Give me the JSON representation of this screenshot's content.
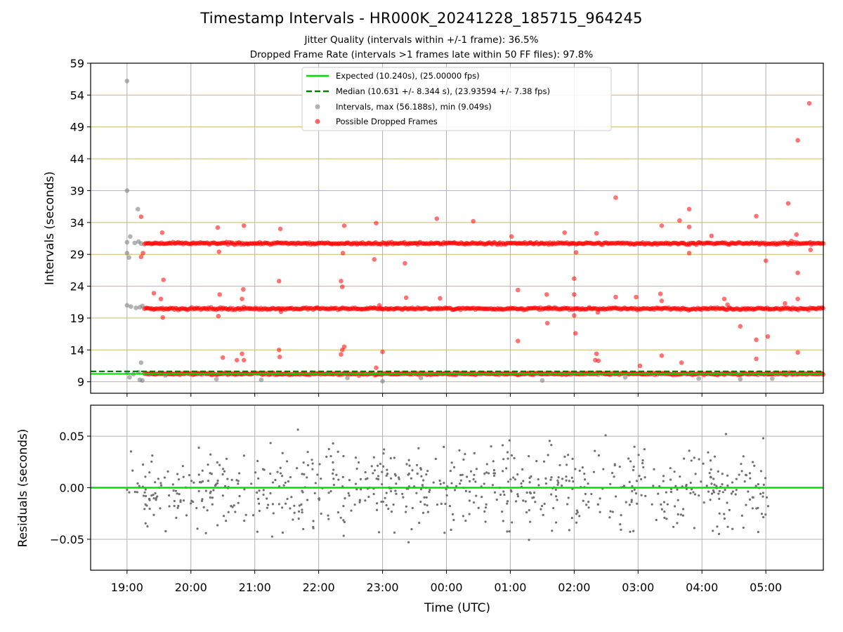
{
  "chart_data": [
    {
      "type": "scatter",
      "title": "Timestamp Intervals - HR000K_20241228_185715_964245",
      "subtitle_lines": [
        "Jitter Quality (intervals within +/-1 frame): 36.5%",
        "Dropped Frame Rate (intervals >1 frames late within 50 FF files): 97.8%"
      ],
      "ylabel": "Intervals (seconds)",
      "ylim": [
        7.2,
        59
      ],
      "yticks": [
        9,
        14,
        19,
        24,
        29,
        34,
        39,
        44,
        49,
        54,
        59
      ],
      "ytick_labels": [
        "9",
        "14",
        "19",
        "24",
        "29",
        "34",
        "39",
        "44",
        "49",
        "54",
        "59"
      ],
      "xlim_hours": [
        -0.57,
        10.9
      ],
      "grid": true,
      "legend_placement": "upper-center",
      "legend": [
        "Expected (10.240s), (25.00000 fps)",
        "Median (10.631 +/- 8.344 s), (23.93594 +/- 7.38 fps)",
        "Intervals, max (56.188s), min (9.049s)",
        "Possible Dropped Frames"
      ],
      "lines": {
        "expected": 10.24,
        "median": 10.631
      },
      "bands": [
        10.24,
        20.48,
        30.72
      ],
      "band_range_hours": [
        0.27,
        10.9
      ],
      "gray_points": [
        [
          0.0,
          56.2
        ],
        [
          0.0,
          39.0
        ],
        [
          0.0,
          30.9
        ],
        [
          0.05,
          31.8
        ],
        [
          0.0,
          29.2
        ],
        [
          0.03,
          28.5
        ],
        [
          0.12,
          30.8
        ],
        [
          0.18,
          31.0
        ],
        [
          0.22,
          30.7
        ],
        [
          0.17,
          36.1
        ],
        [
          0.0,
          21.0
        ],
        [
          0.06,
          20.8
        ],
        [
          0.14,
          20.6
        ],
        [
          0.2,
          20.7
        ],
        [
          0.24,
          20.9
        ],
        [
          0.0,
          10.4
        ],
        [
          0.04,
          9.7
        ],
        [
          0.1,
          10.2
        ],
        [
          0.18,
          10.5
        ],
        [
          0.2,
          9.3
        ],
        [
          0.24,
          9.2
        ],
        [
          0.22,
          12.0
        ],
        [
          0.6,
          10.0
        ],
        [
          1.4,
          9.4
        ],
        [
          2.1,
          9.3
        ],
        [
          3.45,
          9.6
        ],
        [
          4.0,
          9.1
        ],
        [
          4.6,
          9.6
        ],
        [
          6.5,
          9.2
        ],
        [
          7.8,
          9.7
        ],
        [
          9.6,
          9.4
        ],
        [
          8.95,
          9.5
        ],
        [
          10.1,
          9.5
        ]
      ],
      "red_outliers": [
        [
          0.25,
          29.2
        ],
        [
          0.22,
          28.6
        ],
        [
          0.22,
          34.9
        ],
        [
          0.42,
          22.9
        ],
        [
          0.53,
          22.0
        ],
        [
          0.55,
          32.4
        ],
        [
          0.57,
          25.0
        ],
        [
          0.56,
          19.1
        ],
        [
          1.45,
          22.7
        ],
        [
          1.43,
          19.3
        ],
        [
          1.42,
          33.2
        ],
        [
          1.44,
          29.4
        ],
        [
          1.5,
          12.8
        ],
        [
          1.8,
          22.0
        ],
        [
          1.8,
          13.4
        ],
        [
          1.83,
          12.4
        ],
        [
          1.82,
          23.5
        ],
        [
          1.83,
          33.5
        ],
        [
          1.72,
          12.4
        ],
        [
          2.38,
          24.8
        ],
        [
          2.38,
          14.0
        ],
        [
          2.39,
          12.9
        ],
        [
          2.41,
          20.0
        ],
        [
          2.4,
          33.0
        ],
        [
          3.35,
          13.3
        ],
        [
          3.37,
          14.0
        ],
        [
          3.35,
          24.8
        ],
        [
          3.37,
          23.9
        ],
        [
          3.38,
          29.2
        ],
        [
          3.4,
          14.5
        ],
        [
          3.4,
          33.5
        ],
        [
          3.87,
          28.2
        ],
        [
          3.9,
          33.9
        ],
        [
          3.95,
          21.0
        ],
        [
          3.9,
          11.2
        ],
        [
          4.0,
          13.7
        ],
        [
          4.35,
          27.6
        ],
        [
          4.37,
          22.2
        ],
        [
          4.85,
          34.6
        ],
        [
          4.9,
          22.1
        ],
        [
          5.42,
          34.2
        ],
        [
          6.02,
          31.8
        ],
        [
          6.12,
          23.4
        ],
        [
          6.12,
          15.4
        ],
        [
          6.57,
          22.7
        ],
        [
          6.6,
          20.7
        ],
        [
          6.58,
          18.2
        ],
        [
          6.85,
          32.4
        ],
        [
          7.0,
          25.2
        ],
        [
          7.0,
          22.7
        ],
        [
          7.0,
          19.4
        ],
        [
          7.02,
          16.6
        ],
        [
          7.03,
          29.3
        ],
        [
          7.35,
          13.4
        ],
        [
          7.38,
          12.3
        ],
        [
          7.33,
          12.4
        ],
        [
          7.35,
          32.3
        ],
        [
          7.37,
          19.9
        ],
        [
          7.65,
          37.9
        ],
        [
          7.65,
          22.3
        ],
        [
          7.97,
          22.3
        ],
        [
          8.03,
          11.5
        ],
        [
          8.35,
          22.8
        ],
        [
          8.37,
          13.1
        ],
        [
          8.37,
          33.5
        ],
        [
          8.37,
          21.7
        ],
        [
          8.65,
          34.3
        ],
        [
          8.68,
          12.0
        ],
        [
          8.8,
          36.1
        ],
        [
          8.8,
          33.3
        ],
        [
          8.8,
          29.2
        ],
        [
          9.15,
          31.9
        ],
        [
          9.35,
          22.0
        ],
        [
          9.6,
          17.7
        ],
        [
          9.85,
          35.0
        ],
        [
          9.85,
          15.6
        ],
        [
          9.85,
          12.6
        ],
        [
          10.0,
          28.0
        ],
        [
          10.03,
          16.1
        ],
        [
          10.35,
          37.0
        ],
        [
          10.4,
          31.1
        ],
        [
          10.48,
          32.1
        ],
        [
          10.5,
          26.1
        ],
        [
          10.5,
          22.0
        ],
        [
          10.5,
          13.6
        ],
        [
          10.5,
          46.9
        ],
        [
          10.7,
          29.7
        ],
        [
          10.68,
          52.7
        ],
        [
          10.3,
          21.3
        ],
        [
          9.4,
          21.1
        ]
      ]
    },
    {
      "type": "scatter",
      "ylabel": "Residuals (seconds)",
      "xlabel": "Time (UTC)",
      "ylim": [
        -0.08,
        0.08
      ],
      "yticks": [
        -0.05,
        0.0,
        0.05
      ],
      "ytick_labels": [
        "−0.05",
        "0.00",
        "0.05"
      ],
      "xticks_hours": [
        0,
        1,
        2,
        3,
        4,
        5,
        6,
        7,
        8,
        9,
        10
      ],
      "xtick_labels": [
        "19:00",
        "20:00",
        "21:00",
        "22:00",
        "23:00",
        "00:00",
        "01:00",
        "02:00",
        "03:00",
        "04:00",
        "05:00"
      ],
      "zero_line": 0.0,
      "residual_spread_sd": 0.028,
      "residual_count": 720,
      "grid": true
    }
  ],
  "colors": {
    "expected": "#00e000",
    "median": "#008000",
    "interval_points": "#808080",
    "dropped": "#ff0000",
    "hgrid_top": "#d2b76a",
    "grid": "#b0b0b0",
    "residual_points": "#707070"
  }
}
